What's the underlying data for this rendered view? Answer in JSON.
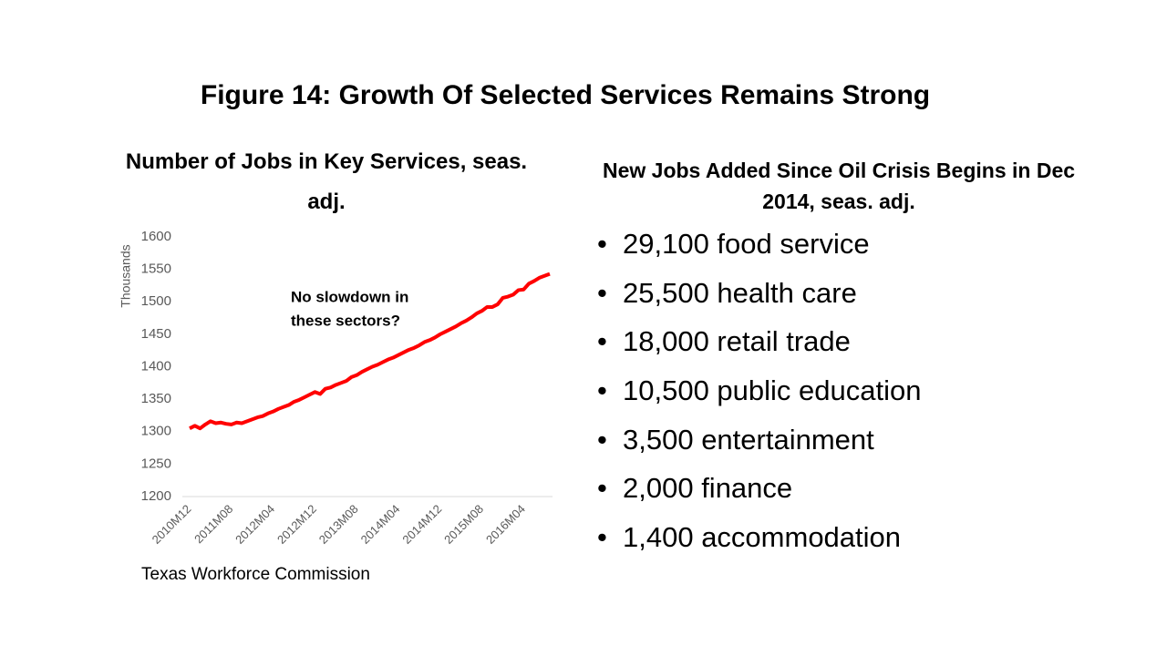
{
  "title": "Figure 14: Growth Of Selected Services Remains Strong",
  "chart_data": {
    "type": "line",
    "title": "Number of Jobs in Key Services, seas. adj.",
    "y_label": "Thousands",
    "annotation": [
      "No slowdown in",
      "these sectors?"
    ],
    "source": "Texas Workforce Commission",
    "categories": [
      "2010M12",
      null,
      null,
      null,
      null,
      null,
      null,
      null,
      "2011M08",
      null,
      null,
      null,
      null,
      null,
      null,
      null,
      "2012M04",
      null,
      null,
      null,
      null,
      null,
      null,
      null,
      "2012M12",
      null,
      null,
      null,
      null,
      null,
      null,
      null,
      "2013M08",
      null,
      null,
      null,
      null,
      null,
      null,
      null,
      "2014M04",
      null,
      null,
      null,
      null,
      null,
      null,
      null,
      "2014M12",
      null,
      null,
      null,
      null,
      null,
      null,
      null,
      "2015M08",
      null,
      null,
      null,
      null,
      null,
      null,
      null,
      "2016M04",
      null,
      null,
      null,
      null,
      null
    ],
    "series": [
      {
        "name": "Jobs",
        "color": "#ff0000",
        "values": [
          1305,
          1309,
          1305,
          1311,
          1316,
          1313,
          1314,
          1312,
          1311,
          1314,
          1313,
          1316,
          1319,
          1322,
          1324,
          1328,
          1331,
          1335,
          1338,
          1341,
          1346,
          1349,
          1353,
          1357,
          1361,
          1358,
          1366,
          1368,
          1372,
          1375,
          1378,
          1384,
          1387,
          1392,
          1396,
          1400,
          1403,
          1407,
          1411,
          1414,
          1418,
          1422,
          1426,
          1429,
          1433,
          1438,
          1441,
          1445,
          1450,
          1454,
          1458,
          1462,
          1467,
          1471,
          1476,
          1482,
          1486,
          1492,
          1492,
          1496,
          1506,
          1508,
          1511,
          1518,
          1519,
          1528,
          1532,
          1537,
          1540,
          1543
        ]
      }
    ],
    "ylim": [
      1200,
      1600
    ],
    "yticks": [
      1200,
      1250,
      1300,
      1350,
      1400,
      1450,
      1500,
      1550,
      1600
    ],
    "grid": false
  },
  "list": {
    "title": "New Jobs Added Since Oil Crisis Begins in Dec 2014, seas. adj.",
    "items": [
      "29,100 food service",
      "25,500 health care",
      "18,000 retail trade",
      "10,500 public education",
      "3,500 entertainment",
      "2,000 finance",
      "1,400 accommodation"
    ]
  }
}
